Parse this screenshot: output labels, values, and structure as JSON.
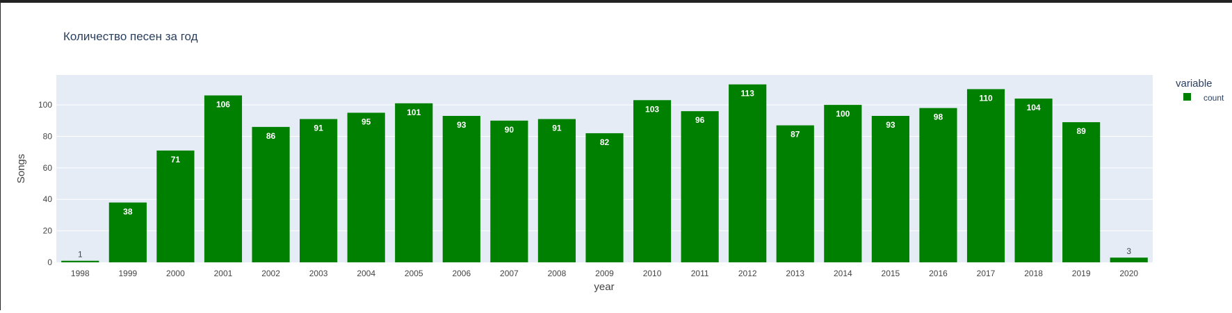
{
  "chart_data": {
    "type": "bar",
    "title": "Количество песен за год",
    "xlabel": "year",
    "ylabel": "Songs",
    "categories": [
      "1998",
      "1999",
      "2000",
      "2001",
      "2002",
      "2003",
      "2004",
      "2005",
      "2006",
      "2007",
      "2008",
      "2009",
      "2010",
      "2011",
      "2012",
      "2013",
      "2014",
      "2015",
      "2016",
      "2017",
      "2018",
      "2019",
      "2020"
    ],
    "series": [
      {
        "name": "count",
        "values": [
          1,
          38,
          71,
          106,
          86,
          91,
          95,
          101,
          93,
          90,
          91,
          82,
          103,
          96,
          113,
          87,
          100,
          93,
          98,
          110,
          104,
          89,
          3
        ]
      }
    ],
    "ylim": [
      0,
      119
    ],
    "yticks": [
      "0",
      "20",
      "40",
      "60",
      "80",
      "100"
    ],
    "grid": true,
    "legend": {
      "title": "variable",
      "position": "right"
    },
    "colors": {
      "bar": "#008000",
      "plot_bg": "#E5ECF6",
      "grid": "#ffffff",
      "text": "#2a3f5f",
      "tick_text": "#444444"
    }
  }
}
